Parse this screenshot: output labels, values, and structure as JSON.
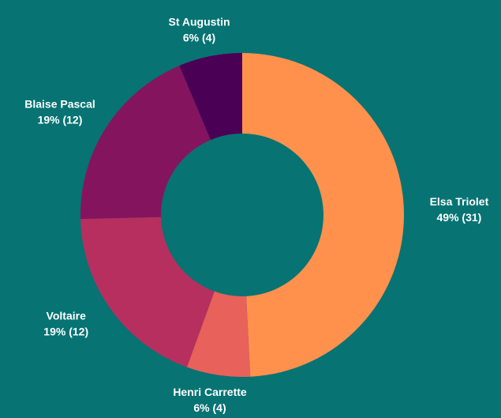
{
  "chart_data": {
    "type": "pie",
    "donut": true,
    "categories": [
      "Elsa Triolet",
      "Henri Carrette",
      "Voltaire",
      "Blaise Pascal",
      "St Augustin"
    ],
    "values": [
      31,
      4,
      12,
      12,
      4
    ],
    "value_labels": [
      "49% (31)",
      "6% (4)",
      "19% (12)",
      "19% (12)",
      "6% (4)"
    ],
    "colors": [
      "#ff914d",
      "#e8615a",
      "#b72f5e",
      "#85145f",
      "#4a0055"
    ]
  }
}
